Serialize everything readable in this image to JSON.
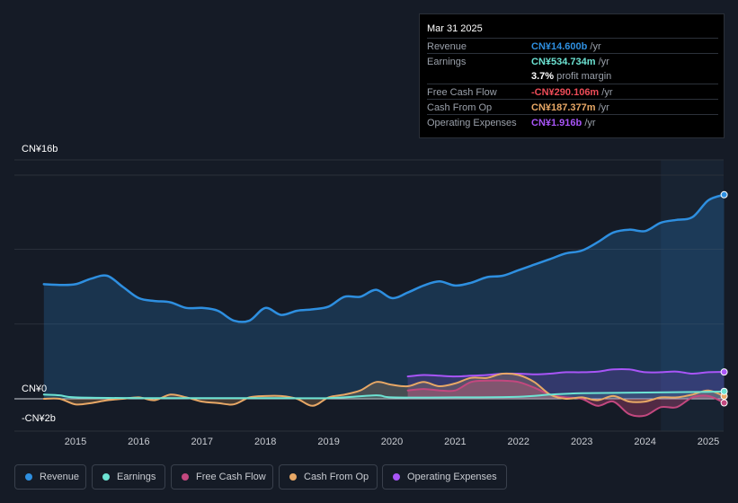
{
  "tooltip": {
    "date": "Mar 31 2025",
    "rows": [
      {
        "label": "Revenue",
        "value": "CN¥14.600b",
        "unit": " /yr",
        "color": "#2e8fe0"
      },
      {
        "label": "Earnings",
        "value": "CN¥534.734m",
        "unit": " /yr",
        "color": "#6de3d3"
      },
      {
        "label": "",
        "value": "3.7%",
        "unit": " profit margin",
        "color": "#ffffff"
      },
      {
        "label": "Free Cash Flow",
        "value": "-CN¥290.106m",
        "unit": " /yr",
        "color": "#ee4c58"
      },
      {
        "label": "Cash From Op",
        "value": "CN¥187.377m",
        "unit": " /yr",
        "color": "#e8a866"
      },
      {
        "label": "Operating Expenses",
        "value": "CN¥1.916b",
        "unit": " /yr",
        "color": "#a855f7"
      }
    ]
  },
  "legend": [
    {
      "label": "Revenue",
      "color": "#2e8fe0"
    },
    {
      "label": "Earnings",
      "color": "#6de3d3"
    },
    {
      "label": "Free Cash Flow",
      "color": "#c3487f"
    },
    {
      "label": "Cash From Op",
      "color": "#e8a866"
    },
    {
      "label": "Operating Expenses",
      "color": "#a855f7"
    }
  ],
  "chart_data": {
    "type": "line",
    "y_top_label": "CN¥16b",
    "y_zero_label": "CN¥0",
    "y_bottom_label": "-CN¥2b",
    "ylim": [
      -2,
      16
    ],
    "xlim": [
      2014.5,
      2025.25
    ],
    "x_ticks": [
      "2015",
      "2016",
      "2017",
      "2018",
      "2019",
      "2020",
      "2021",
      "2022",
      "2023",
      "2024",
      "2025"
    ],
    "highlight_from": 2024.25,
    "series": [
      {
        "name": "Revenue",
        "color": "#2e8fe0",
        "x": [
          2014.5,
          2014.75,
          2015.0,
          2015.25,
          2015.5,
          2015.75,
          2016.0,
          2016.25,
          2016.5,
          2016.75,
          2017.0,
          2017.25,
          2017.5,
          2017.75,
          2018.0,
          2018.25,
          2018.5,
          2018.75,
          2019.0,
          2019.25,
          2019.5,
          2019.75,
          2020.0,
          2020.25,
          2020.5,
          2020.75,
          2021.0,
          2021.25,
          2021.5,
          2021.75,
          2022.0,
          2022.25,
          2022.5,
          2022.75,
          2023.0,
          2023.25,
          2023.5,
          2023.75,
          2024.0,
          2024.25,
          2024.5,
          2024.75,
          2025.0,
          2025.25
        ],
        "values": [
          8.2,
          8.15,
          8.2,
          8.6,
          8.8,
          8.0,
          7.2,
          7.0,
          6.9,
          6.5,
          6.5,
          6.3,
          5.6,
          5.6,
          6.5,
          6.0,
          6.3,
          6.4,
          6.6,
          7.3,
          7.3,
          7.8,
          7.2,
          7.6,
          8.1,
          8.4,
          8.1,
          8.3,
          8.7,
          8.8,
          9.2,
          9.6,
          10.0,
          10.4,
          10.6,
          11.2,
          11.9,
          12.1,
          12.0,
          12.6,
          12.8,
          13.0,
          14.2,
          14.6
        ]
      },
      {
        "name": "Earnings",
        "color": "#6de3d3",
        "x": [
          2014.5,
          2014.75,
          2015.0,
          2016.0,
          2017.0,
          2018.0,
          2019.0,
          2019.75,
          2020.0,
          2021.0,
          2022.0,
          2022.5,
          2023.0,
          2024.0,
          2025.0,
          2025.25
        ],
        "values": [
          0.3,
          0.25,
          0.1,
          0.05,
          0.05,
          0.05,
          0.05,
          0.25,
          0.1,
          0.1,
          0.15,
          0.3,
          0.4,
          0.45,
          0.5,
          0.53
        ]
      },
      {
        "name": "Free Cash Flow",
        "color": "#c3487f",
        "x": [
          2020.25,
          2020.5,
          2020.75,
          2021.0,
          2021.25,
          2021.5,
          2021.75,
          2022.0,
          2022.25,
          2022.5,
          2022.75,
          2023.0,
          2023.25,
          2023.5,
          2023.75,
          2024.0,
          2024.25,
          2024.5,
          2024.75,
          2025.0,
          2025.25
        ],
        "values": [
          0.6,
          0.7,
          0.6,
          0.6,
          1.2,
          1.3,
          1.3,
          1.2,
          0.8,
          0.3,
          0.1,
          0.0,
          -0.5,
          -0.2,
          -1.1,
          -1.2,
          -0.6,
          -0.6,
          0.1,
          0.2,
          -0.29
        ]
      },
      {
        "name": "Cash From Op",
        "color": "#e8a866",
        "x": [
          2014.5,
          2014.75,
          2015.0,
          2015.25,
          2015.5,
          2015.75,
          2016.0,
          2016.25,
          2016.5,
          2016.75,
          2017.0,
          2017.25,
          2017.5,
          2017.75,
          2018.0,
          2018.25,
          2018.5,
          2018.75,
          2019.0,
          2019.25,
          2019.5,
          2019.75,
          2020.0,
          2020.25,
          2020.5,
          2020.75,
          2021.0,
          2021.25,
          2021.5,
          2021.75,
          2022.0,
          2022.25,
          2022.5,
          2022.75,
          2023.0,
          2023.25,
          2023.5,
          2023.75,
          2024.0,
          2024.25,
          2024.5,
          2024.75,
          2025.0,
          2025.25
        ],
        "values": [
          0.0,
          0.0,
          -0.4,
          -0.3,
          -0.1,
          0.0,
          0.1,
          -0.1,
          0.3,
          0.1,
          -0.2,
          -0.3,
          -0.4,
          0.1,
          0.2,
          0.2,
          0.0,
          -0.5,
          0.1,
          0.3,
          0.6,
          1.2,
          1.0,
          0.9,
          1.2,
          0.9,
          1.1,
          1.5,
          1.5,
          1.8,
          1.7,
          1.2,
          0.3,
          0.0,
          0.1,
          -0.1,
          0.2,
          -0.2,
          -0.2,
          0.1,
          0.1,
          0.3,
          0.6,
          0.19
        ]
      },
      {
        "name": "Operating Expenses",
        "color": "#a855f7",
        "x": [
          2020.25,
          2020.5,
          2020.75,
          2021.0,
          2021.25,
          2021.5,
          2021.75,
          2022.0,
          2022.25,
          2022.5,
          2022.75,
          2023.0,
          2023.25,
          2023.5,
          2023.75,
          2024.0,
          2024.25,
          2024.5,
          2024.75,
          2025.0,
          2025.25
        ],
        "values": [
          1.6,
          1.7,
          1.65,
          1.6,
          1.65,
          1.7,
          1.8,
          1.8,
          1.75,
          1.8,
          1.9,
          1.9,
          1.95,
          2.1,
          2.1,
          1.9,
          1.9,
          1.95,
          1.8,
          1.9,
          1.92
        ]
      }
    ]
  }
}
